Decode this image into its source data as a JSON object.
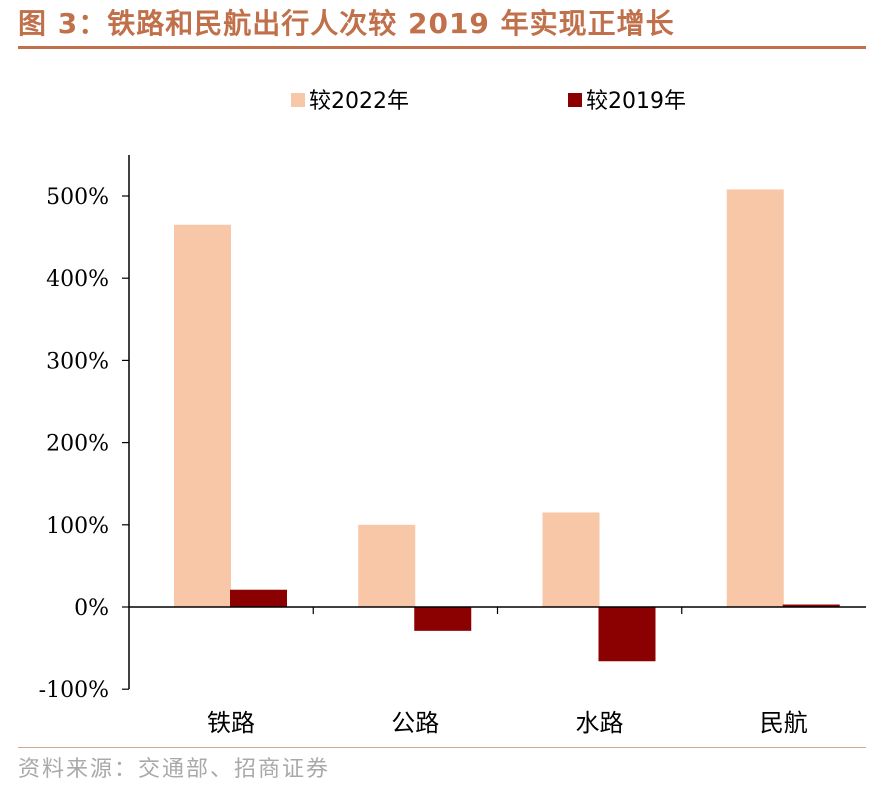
{
  "figure": {
    "title": "图 3：铁路和民航出行人次较 2019 年实现正增长",
    "source": "资料来源：交通部、招商证券"
  },
  "colors": {
    "title": "#c0704a",
    "series_2022": "#f7c7a7",
    "series_2019": "#8b0000"
  },
  "chart_data": {
    "type": "bar",
    "categories": [
      "铁路",
      "公路",
      "水路",
      "民航"
    ],
    "series": [
      {
        "name": "较2022年",
        "values": [
          465,
          100,
          115,
          508
        ]
      },
      {
        "name": "较2019年",
        "values": [
          21,
          -29,
          -66,
          3
        ]
      }
    ],
    "yticks": [
      "500%",
      "400%",
      "300%",
      "200%",
      "100%",
      "0%",
      "-100%"
    ],
    "ytick_values": [
      500,
      400,
      300,
      200,
      100,
      0,
      -100
    ],
    "ylim": [
      -100,
      550
    ],
    "legend_position": "top",
    "grid": false,
    "title": "",
    "xlabel": "",
    "ylabel": ""
  }
}
